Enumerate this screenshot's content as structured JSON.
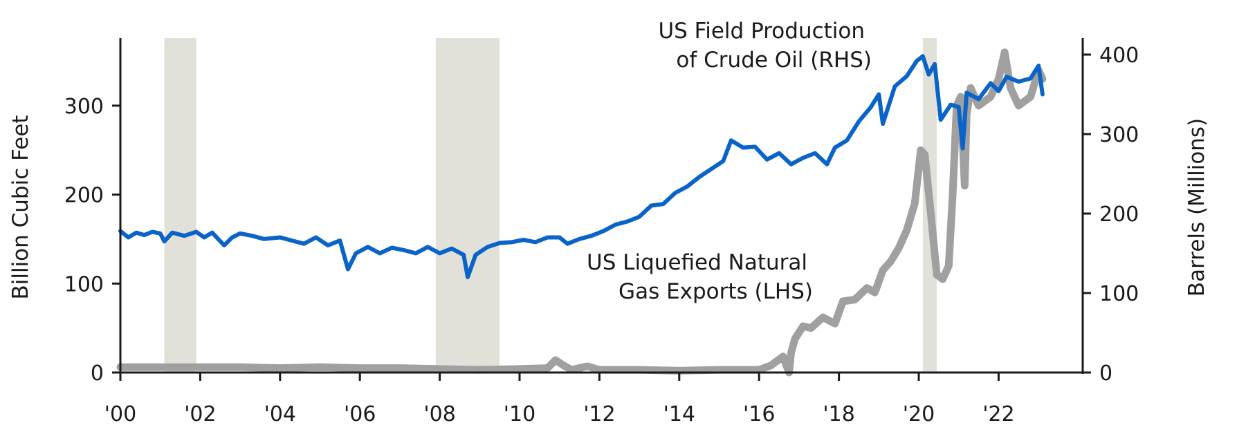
{
  "chart_data": {
    "type": "line",
    "title": "",
    "xlabel": "",
    "ylabel_left": "Billion Cubic Feet",
    "ylabel_right": "Barrels (Millions)",
    "xlim": [
      2000,
      2023.8
    ],
    "ylim_left": [
      0,
      380
    ],
    "ylim_right": [
      0,
      420
    ],
    "x_ticks": [
      2000,
      2002,
      2004,
      2006,
      2008,
      2010,
      2012,
      2014,
      2016,
      2018,
      2020,
      2022
    ],
    "x_tick_labels": [
      "'00",
      "'02",
      "'04",
      "'06",
      "'08",
      "'10",
      "'12",
      "'14",
      "'16",
      "'18",
      "'20",
      "'22"
    ],
    "y_left_ticks": [
      0,
      100,
      200,
      300
    ],
    "y_left_tick_labels": [
      "0",
      "100",
      "200",
      "300"
    ],
    "y_right_ticks": [
      0,
      100,
      200,
      300,
      400
    ],
    "y_right_tick_labels": [
      "0",
      "100",
      "200",
      "300",
      "400"
    ],
    "recessions": [
      [
        2001.1,
        2001.9
      ],
      [
        2007.9,
        2009.5
      ],
      [
        2020.1,
        2020.45
      ]
    ],
    "colors": {
      "crude": "#0a64c8",
      "lng": "#a0a0a0",
      "recession": "#e1e1d9",
      "axis": "#1a1a1a"
    },
    "annotations": [
      {
        "lines": [
          "US Field Production",
          "of Crude Oil (RHS)"
        ],
        "series": "crude"
      },
      {
        "lines": [
          "US Liquefied Natural",
          "Gas Exports (LHS)"
        ],
        "series": "lng"
      }
    ],
    "series": [
      {
        "name": "US Field Production of Crude Oil (RHS)",
        "axis": "right",
        "key": "crude",
        "x": [
          2000,
          2000.2,
          2000.4,
          2000.6,
          2000.8,
          2001.0,
          2001.1,
          2001.3,
          2001.6,
          2001.9,
          2002.1,
          2002.3,
          2002.6,
          2002.8,
          2003.0,
          2003.3,
          2003.6,
          2004.0,
          2004.3,
          2004.6,
          2004.9,
          2005.2,
          2005.5,
          2005.7,
          2005.9,
          2006.2,
          2006.5,
          2006.8,
          2007.1,
          2007.4,
          2007.7,
          2008.0,
          2008.3,
          2008.6,
          2008.7,
          2008.9,
          2009.2,
          2009.5,
          2009.8,
          2010.1,
          2010.4,
          2010.7,
          2011.0,
          2011.2,
          2011.5,
          2011.8,
          2012.1,
          2012.4,
          2012.7,
          2013.0,
          2013.3,
          2013.6,
          2013.9,
          2014.2,
          2014.5,
          2014.8,
          2015.1,
          2015.3,
          2015.6,
          2015.9,
          2016.2,
          2016.5,
          2016.8,
          2017.1,
          2017.4,
          2017.7,
          2017.9,
          2018.2,
          2018.5,
          2018.8,
          2019.0,
          2019.1,
          2019.4,
          2019.7,
          2019.95,
          2020.1,
          2020.25,
          2020.4,
          2020.55,
          2020.8,
          2021.0,
          2021.1,
          2021.2,
          2021.5,
          2021.8,
          2022.0,
          2022.2,
          2022.5,
          2022.8,
          2023.0,
          2023.1
        ],
        "y": [
          178,
          170,
          176,
          173,
          177,
          175,
          165,
          176,
          172,
          177,
          170,
          176,
          160,
          170,
          175,
          172,
          168,
          170,
          166,
          162,
          170,
          160,
          166,
          130,
          150,
          158,
          150,
          157,
          154,
          150,
          158,
          150,
          156,
          148,
          120,
          148,
          158,
          163,
          164,
          167,
          164,
          170,
          170,
          162,
          168,
          172,
          178,
          186,
          190,
          196,
          210,
          212,
          226,
          234,
          246,
          256,
          266,
          292,
          283,
          284,
          268,
          276,
          262,
          270,
          276,
          262,
          283,
          292,
          316,
          334,
          350,
          313,
          360,
          373,
          392,
          398,
          375,
          388,
          318,
          337,
          334,
          282,
          352,
          344,
          364,
          354,
          372,
          366,
          370,
          386,
          350
        ]
      },
      {
        "name": "US Liquefied Natural Gas Exports (LHS)",
        "axis": "left",
        "key": "lng",
        "x": [
          2000,
          2001,
          2002,
          2003,
          2004,
          2005,
          2006,
          2007,
          2008,
          2009,
          2010,
          2010.7,
          2010.9,
          2011.1,
          2011.3,
          2011.7,
          2012,
          2013,
          2014,
          2015,
          2016,
          2016.3,
          2016.6,
          2016.75,
          2016.8,
          2016.9,
          2017.1,
          2017.3,
          2017.6,
          2017.9,
          2018.1,
          2018.4,
          2018.7,
          2018.9,
          2019.1,
          2019.3,
          2019.5,
          2019.7,
          2019.9,
          2020.05,
          2020.15,
          2020.3,
          2020.45,
          2020.6,
          2020.75,
          2020.85,
          2020.95,
          2021.05,
          2021.15,
          2021.2,
          2021.3,
          2021.5,
          2021.8,
          2022.0,
          2022.15,
          2022.3,
          2022.5,
          2022.8,
          2023.0,
          2023.1
        ],
        "y": [
          6,
          6,
          6,
          6,
          5,
          6,
          5,
          5,
          4,
          3,
          4,
          5,
          14,
          8,
          3,
          7,
          3,
          3,
          2,
          3,
          3,
          8,
          18,
          0,
          22,
          38,
          52,
          50,
          62,
          55,
          80,
          82,
          95,
          90,
          115,
          125,
          140,
          160,
          190,
          250,
          245,
          180,
          110,
          105,
          120,
          200,
          300,
          310,
          210,
          290,
          320,
          300,
          310,
          330,
          360,
          320,
          300,
          310,
          340,
          330
        ]
      }
    ]
  }
}
